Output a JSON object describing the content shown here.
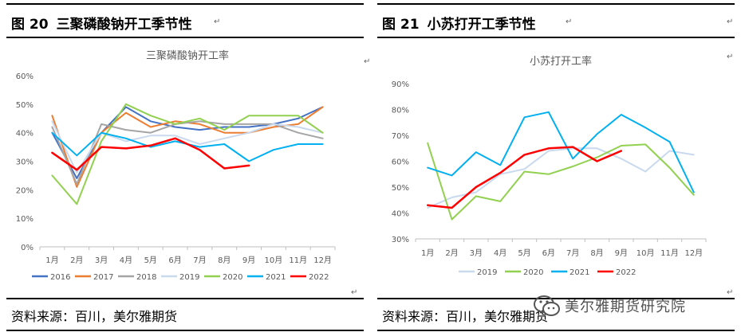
{
  "left": {
    "figure_label": "图 20",
    "figure_title": "三聚磷酸钠开工季节性",
    "source": "资料来源：百川，美尔雅期货",
    "para_mark": "↵"
  },
  "right": {
    "figure_label": "图 21",
    "figure_title": "小苏打开工季节性",
    "source": "资料来源：百川，美尔雅期货",
    "para_mark": "↵"
  },
  "watermark": {
    "text": "美尔雅期货研究院",
    "icon": "wechat-icon"
  },
  "chart_data": [
    {
      "type": "line",
      "title": "三聚磷酸钠开工率",
      "categories": [
        "1月",
        "2月",
        "3月",
        "4月",
        "5月",
        "6月",
        "7月",
        "8月",
        "9月",
        "10月",
        "11月",
        "12月"
      ],
      "ylim": [
        0,
        60
      ],
      "yticks": [
        0,
        10,
        20,
        30,
        40,
        50,
        60
      ],
      "ytick_labels": [
        "0%",
        "10%",
        "20%",
        "30%",
        "40%",
        "50%",
        "60%"
      ],
      "grid": false,
      "legend": "bottom",
      "series": [
        {
          "name": "2016",
          "color": "#4472c4",
          "values": [
            40,
            24,
            40,
            49,
            44,
            42,
            41,
            42,
            42,
            43,
            45,
            49
          ]
        },
        {
          "name": "2017",
          "color": "#ed7d31",
          "values": [
            46,
            21,
            40,
            47,
            42,
            44,
            43,
            40,
            40,
            42,
            43,
            49
          ]
        },
        {
          "name": "2018",
          "color": "#a5a5a5",
          "values": [
            42,
            22,
            43,
            41,
            40,
            43,
            44,
            43,
            43,
            43,
            40,
            38
          ]
        },
        {
          "name": "2019",
          "color": "#c9d9ee",
          "values": [
            44,
            26,
            40,
            37,
            39,
            39,
            36,
            38,
            40,
            43,
            42,
            40
          ]
        },
        {
          "name": "2020",
          "color": "#92d050",
          "values": [
            25,
            15,
            37,
            50,
            46,
            43,
            45,
            41,
            46,
            46,
            46,
            40
          ]
        },
        {
          "name": "2021",
          "color": "#00b0f0",
          "values": [
            40,
            32,
            40,
            38,
            35,
            37,
            35,
            36,
            30,
            34,
            36,
            36
          ]
        },
        {
          "name": "2022",
          "color": "#ff0000",
          "values": [
            33,
            27,
            35,
            34.5,
            35.5,
            38,
            34,
            27.5,
            28.5,
            null,
            null,
            null
          ]
        }
      ]
    },
    {
      "type": "line",
      "title": "小苏打开工率",
      "categories": [
        "1月",
        "2月",
        "3月",
        "4月",
        "5月",
        "6月",
        "7月",
        "8月",
        "9月",
        "10月",
        "11月",
        "12月"
      ],
      "ylim": [
        30,
        90
      ],
      "yticks": [
        30,
        40,
        50,
        60,
        70,
        80,
        90
      ],
      "ytick_labels": [
        "30%",
        "40%",
        "50%",
        "60%",
        "70%",
        "80%",
        "90%"
      ],
      "grid": false,
      "legend": "bottom",
      "series": [
        {
          "name": "2019",
          "color": "#c9d9ee",
          "values": [
            42,
            46,
            48,
            55,
            57,
            64,
            65,
            65,
            61,
            56,
            64,
            62.5
          ]
        },
        {
          "name": "2020",
          "color": "#92d050",
          "values": [
            67,
            37.5,
            46.5,
            44.5,
            56,
            55,
            58,
            61.5,
            66,
            66.5,
            57.5,
            47
          ]
        },
        {
          "name": "2021",
          "color": "#00b0f0",
          "values": [
            57.5,
            54.5,
            63.5,
            58.5,
            77,
            79,
            61,
            70.5,
            78,
            73,
            67.5,
            48
          ]
        },
        {
          "name": "2022",
          "color": "#ff0000",
          "values": [
            43,
            42,
            50,
            55.5,
            62.5,
            65,
            65.5,
            60,
            64,
            null,
            null,
            null
          ]
        }
      ]
    }
  ]
}
